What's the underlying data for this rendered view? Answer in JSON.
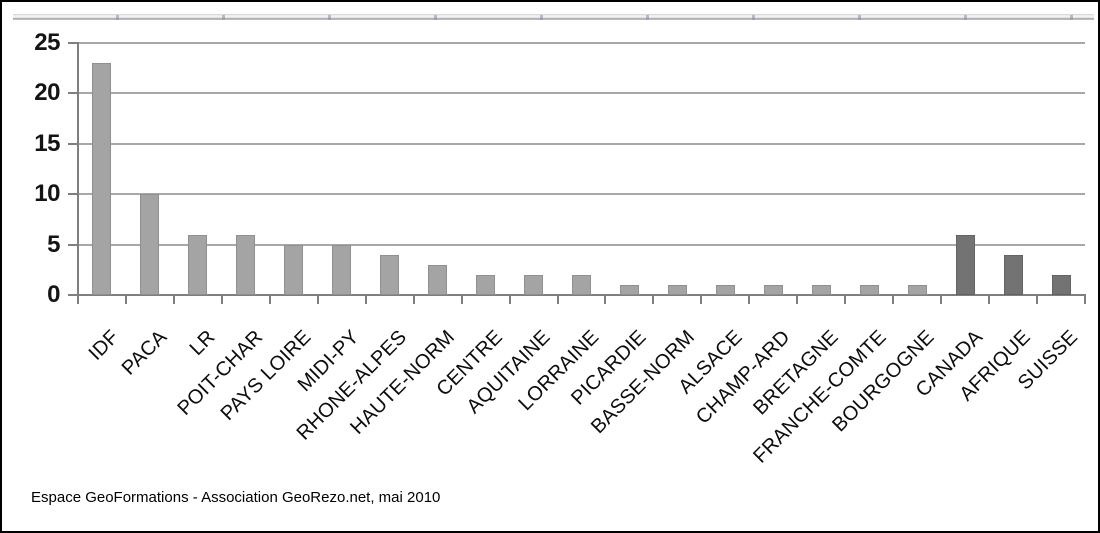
{
  "caption": "Espace GeoFormations - Association GeoRezo.net, mai 2010",
  "colors": {
    "bar_default": "#a4a4a4",
    "bar_default_border": "#8f8f8f",
    "bar_highlight": "#737373",
    "bar_highlight_border": "#626262",
    "gridline": "#a8a8a8",
    "axis": "#7f7f7f",
    "background": "#ffffff",
    "border": "#000000"
  },
  "chart_data": {
    "type": "bar",
    "title": "",
    "xlabel": "",
    "ylabel": "",
    "categories": [
      "IDF",
      "PACA",
      "LR",
      "POIT-CHAR",
      "PAYS LOIRE",
      "MIDI-PY",
      "RHONE-ALPES",
      "HAUTE-NORM",
      "CENTRE",
      "AQUITAINE",
      "LORRAINE",
      "PICARDIE",
      "BASSE-NORM",
      "ALSACE",
      "CHAMP-ARD",
      "BRETAGNE",
      "FRANCHE-COMTE",
      "BOURGOGNE",
      "CANADA",
      "AFRIQUE",
      "SUISSE"
    ],
    "values": [
      23,
      10,
      6,
      6,
      5,
      5,
      4,
      3,
      2,
      2,
      2,
      1,
      1,
      1,
      1,
      1,
      1,
      1,
      6,
      4,
      2
    ],
    "highlighted_categories": [
      "CANADA",
      "AFRIQUE",
      "SUISSE"
    ],
    "highlight_from_index": 18,
    "ylim": [
      0,
      25
    ],
    "yticks": [
      0,
      5,
      10,
      15,
      20,
      25
    ],
    "grid": true,
    "legend": false,
    "x_label_rotation_deg": 45
  }
}
